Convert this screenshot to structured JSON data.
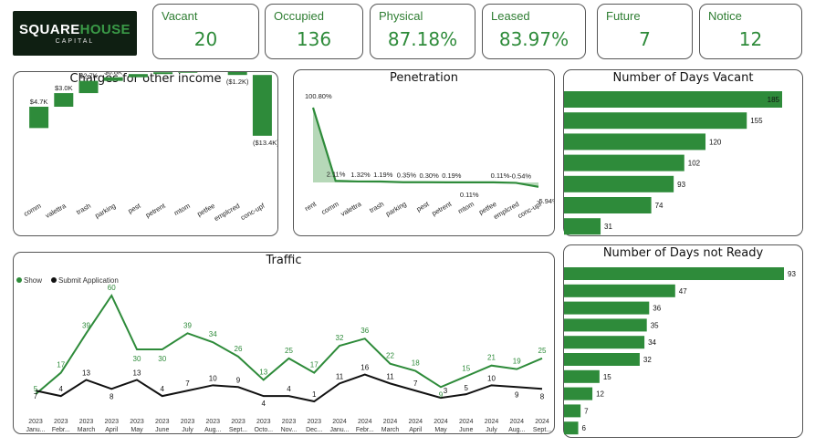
{
  "logo": {
    "part1": "SQUARE",
    "part2": "HOUSE",
    "sub": "CAPITAL"
  },
  "kpis": [
    {
      "label": "Vacant",
      "value": "20"
    },
    {
      "label": "Occupied",
      "value": "136"
    },
    {
      "label": "Physical",
      "value": "87.18%"
    },
    {
      "label": "Leased",
      "value": "83.97%"
    },
    {
      "label": "Future",
      "value": "7"
    },
    {
      "label": "Notice",
      "value": "12"
    }
  ],
  "colors": {
    "green": "#2e8b3a",
    "light_green": "#a9d1ab",
    "black": "#111111"
  },
  "chart_data": [
    {
      "type": "waterfall",
      "title": "Charges for other income",
      "categories": [
        "comm",
        "valettra",
        "trash",
        "parking",
        "pest",
        "petrent",
        "mtom",
        "petfee",
        "emplcred",
        "conc-upf"
      ],
      "values": [
        4.7,
        3.0,
        2.7,
        0.8,
        0.7,
        0.4,
        0.3,
        0.3,
        -1.2,
        -13.4
      ],
      "labels": [
        "$4.7K",
        "$3.0K",
        "$2.7K",
        "$0.8K",
        "$0.7K",
        "$0.4K",
        "$0.3K",
        "$0.3K",
        "($1.2K)",
        "($13.4K)"
      ],
      "unit": "K$"
    },
    {
      "type": "area",
      "title": "Penetration",
      "categories": [
        "rent",
        "comm",
        "valettra",
        "trash",
        "parking",
        "pest",
        "petrent",
        "mtom",
        "petfee",
        "emplcred",
        "conc-upf"
      ],
      "values": [
        100.8,
        2.11,
        1.32,
        1.19,
        0.35,
        0.3,
        0.19,
        0.11,
        0.11,
        -0.54,
        -5.94
      ],
      "labels": [
        "100.80%",
        "2.11%",
        "1.32%",
        "1.19%",
        "0.35%",
        "0.30%",
        "0.19%",
        "0.11%",
        "0.11%",
        "-0.54%",
        "-5.94%"
      ]
    },
    {
      "type": "bar",
      "orientation": "horizontal",
      "title": "Number of Days Vacant",
      "values": [
        185,
        155,
        120,
        102,
        93,
        74,
        31
      ]
    },
    {
      "type": "bar",
      "orientation": "horizontal",
      "title": "Number of Days not Ready",
      "values": [
        93,
        47,
        36,
        35,
        34,
        32,
        15,
        12,
        7,
        6
      ]
    },
    {
      "type": "line",
      "title": "Traffic",
      "legend_position": "top-left",
      "years": [
        "2023",
        "2023",
        "2023",
        "2023",
        "2023",
        "2023",
        "2023",
        "2023",
        "2023",
        "2023",
        "2023",
        "2023",
        "2024",
        "2024",
        "2024",
        "2024",
        "2024",
        "2024",
        "2024",
        "2024",
        "2024"
      ],
      "months": [
        "Janu...",
        "Febr...",
        "March",
        "April",
        "May",
        "June",
        "July",
        "Aug...",
        "Sept...",
        "Octo...",
        "Nov...",
        "Dec...",
        "Janu...",
        "Febr...",
        "March",
        "April",
        "May",
        "June",
        "July",
        "Aug...",
        "Sept..."
      ],
      "series": [
        {
          "name": "Show",
          "values": [
            5,
            17,
            39,
            60,
            30,
            30,
            39,
            34,
            26,
            13,
            25,
            17,
            32,
            36,
            22,
            18,
            9,
            15,
            21,
            19,
            25
          ]
        },
        {
          "name": "Submit Application",
          "values": [
            7,
            4,
            13,
            8,
            13,
            4,
            7,
            10,
            9,
            4,
            4,
            1,
            11,
            16,
            11,
            7,
            3,
            5,
            10,
            9,
            8
          ]
        }
      ]
    }
  ]
}
